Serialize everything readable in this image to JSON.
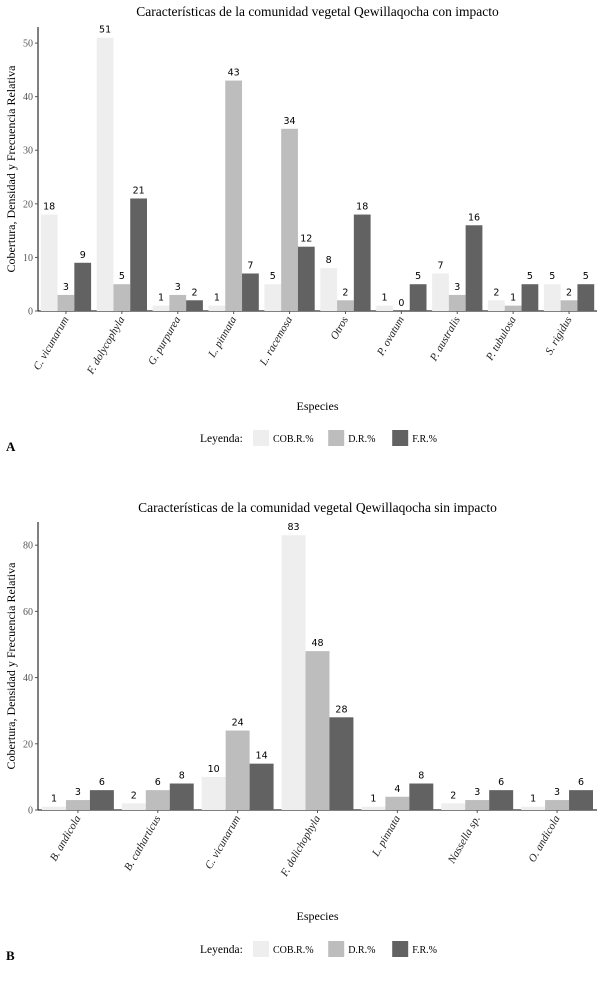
{
  "colors": {
    "COB": "#eeeeee",
    "DR": "#bdbdbd",
    "FR": "#626262"
  },
  "chart_data": [
    {
      "type": "bar",
      "panel": "A",
      "title": "Características de la comunidad vegetal Qewillaqocha con impacto",
      "xlabel": "Especies",
      "ylabel": "Cobertura, Densidad y  Frecuencia Relativa",
      "ylim": [
        0,
        53
      ],
      "yticks": [
        0,
        10,
        20,
        30,
        40,
        50
      ],
      "categories": [
        "C. vicunarum",
        "F. dolycophyla",
        "G. purpurea",
        "L. pinnata",
        "L. racemosa",
        "Otros",
        "P. ovatum",
        "P. australis",
        "P. tubulosa",
        "S. rigidus"
      ],
      "italic": [
        true,
        true,
        true,
        true,
        true,
        false,
        true,
        true,
        true,
        true
      ],
      "series": [
        {
          "name": "COB.R.%",
          "values": [
            18,
            51,
            1,
            1,
            5,
            8,
            1,
            7,
            2,
            5
          ]
        },
        {
          "name": "D.R.%",
          "values": [
            3,
            5,
            3,
            43,
            34,
            2,
            0,
            3,
            1,
            2
          ]
        },
        {
          "name": "F.R.%",
          "values": [
            9,
            21,
            2,
            7,
            12,
            18,
            5,
            16,
            5,
            5
          ]
        }
      ],
      "legend": {
        "title": "Leyenda:",
        "position": "bottom"
      }
    },
    {
      "type": "bar",
      "panel": "B",
      "title": "Características de la comunidad vegetal Qewillaqocha sin impacto",
      "xlabel": "Especies",
      "ylabel": "Cobertura, Densidad y  Frecuencia Relativa",
      "ylim": [
        0,
        87
      ],
      "yticks": [
        0,
        20,
        40,
        60,
        80
      ],
      "categories": [
        "B. andicola",
        "B. catharticus",
        "C. vicunarum",
        "F. dolichophyla",
        "L. pinnata",
        "Nassella sp.",
        "O. andicola"
      ],
      "italic": [
        true,
        true,
        true,
        true,
        true,
        true,
        true
      ],
      "series": [
        {
          "name": "COB.R.%",
          "values": [
            1,
            2,
            10,
            83,
            1,
            2,
            1
          ]
        },
        {
          "name": "D.R.%",
          "values": [
            3,
            6,
            24,
            48,
            4,
            3,
            3
          ]
        },
        {
          "name": "F.R.%",
          "values": [
            6,
            8,
            14,
            28,
            8,
            6,
            6
          ]
        }
      ],
      "legend": {
        "title": "Leyenda:",
        "position": "bottom"
      }
    }
  ]
}
